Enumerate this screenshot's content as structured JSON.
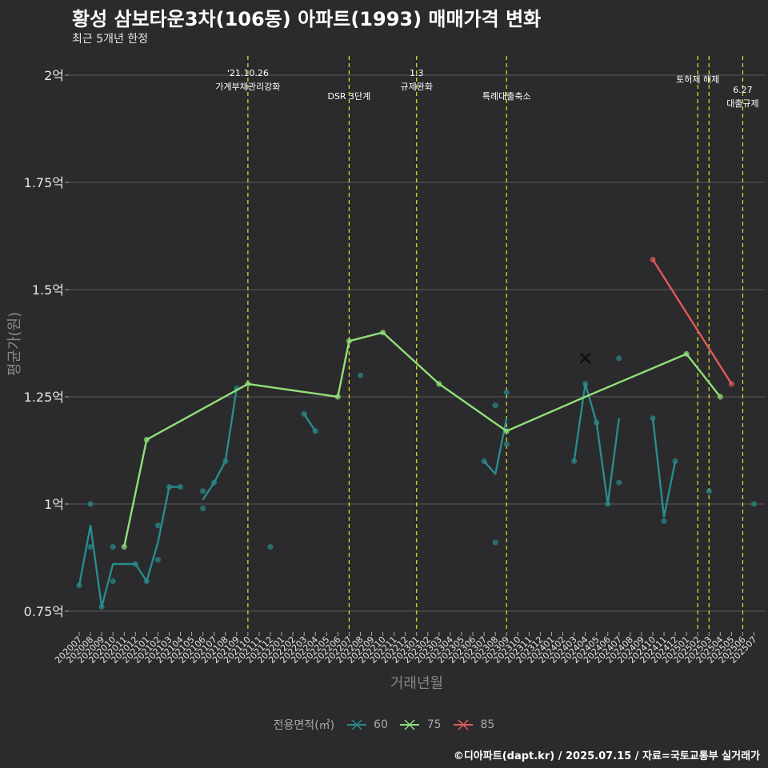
{
  "title": "황성 삼보타운3차(106동) 아파트(1993) 매매가격 변화",
  "subtitle": "최근 5개년 한정",
  "caption": "©디아파트(dapt.kr) / 2025.07.15 / 자료=국토교통부 실거래가",
  "chart_data": {
    "type": "line",
    "xlabel": "거래년월",
    "ylabel": "평균가(원)",
    "ylim": [
      0.7,
      2.05
    ],
    "yticks": [
      0.75,
      1.0,
      1.25,
      1.5,
      1.75,
      2.0
    ],
    "ytick_labels": [
      "0.75억",
      "1억",
      "1.25억",
      "1.5억",
      "1.75억",
      "2억"
    ],
    "categories": [
      "202007",
      "202008",
      "202009",
      "202010",
      "202011",
      "202012",
      "202101",
      "202102",
      "202103",
      "202104",
      "202105",
      "202106",
      "202107",
      "202108",
      "202109",
      "202110",
      "202111",
      "202112",
      "202201",
      "202202",
      "202203",
      "202204",
      "202205",
      "202206",
      "202207",
      "202208",
      "202209",
      "202210",
      "202211",
      "202212",
      "202301",
      "202302",
      "202303",
      "202304",
      "202305",
      "202306",
      "202307",
      "202308",
      "202309",
      "202310",
      "202311",
      "202312",
      "202401",
      "202402",
      "202403",
      "202404",
      "202405",
      "202406",
      "202407",
      "202408",
      "202409",
      "202410",
      "202411",
      "202412",
      "202501",
      "202502",
      "202503",
      "202504",
      "202505",
      "202506",
      "202507"
    ],
    "legend_title": "전용면적(㎡)",
    "grid": true,
    "legend_position": "bottom",
    "series": [
      {
        "name": "60",
        "color": "#2a8c8c",
        "line": [
          [
            [
              "202007",
              0.81
            ],
            [
              "202008",
              0.95
            ],
            [
              "202009",
              0.76
            ],
            [
              "202010",
              0.86
            ],
            [
              "202011",
              0.86
            ],
            [
              "202012",
              0.86
            ],
            [
              "202101",
              0.82
            ],
            [
              "202102",
              0.91
            ],
            [
              "202103",
              1.04
            ],
            [
              "202104",
              1.04
            ]
          ],
          [
            [
              "202106",
              1.01
            ],
            [
              "202107",
              1.05
            ],
            [
              "202108",
              1.1
            ],
            [
              "202109",
              1.27
            ]
          ],
          [
            [
              "202203",
              1.21
            ],
            [
              "202204",
              1.17
            ]
          ],
          [
            [
              "202307",
              1.1
            ],
            [
              "202308",
              1.07
            ],
            [
              "202309",
              1.2
            ]
          ],
          [
            [
              "202403",
              1.1
            ],
            [
              "202404",
              1.28
            ],
            [
              "202405",
              1.19
            ],
            [
              "202406",
              1.0
            ],
            [
              "202407",
              1.2
            ]
          ],
          [
            [
              "202410",
              1.2
            ],
            [
              "202411",
              0.97
            ],
            [
              "202412",
              1.1
            ]
          ]
        ],
        "points": [
          [
            "202007",
            0.81
          ],
          [
            "202008",
            1.0
          ],
          [
            "202008",
            0.9
          ],
          [
            "202009",
            0.76
          ],
          [
            "202010",
            0.9
          ],
          [
            "202010",
            0.82
          ],
          [
            "202012",
            0.86
          ],
          [
            "202101",
            0.82
          ],
          [
            "202102",
            0.95
          ],
          [
            "202102",
            0.87
          ],
          [
            "202103",
            1.04
          ],
          [
            "202104",
            1.04
          ],
          [
            "202106",
            1.03
          ],
          [
            "202106",
            0.99
          ],
          [
            "202107",
            1.05
          ],
          [
            "202108",
            1.1
          ],
          [
            "202109",
            1.27
          ],
          [
            "202112",
            0.9
          ],
          [
            "202203",
            1.21
          ],
          [
            "202204",
            1.17
          ],
          [
            "202208",
            1.3
          ],
          [
            "202307",
            1.1
          ],
          [
            "202308",
            1.23
          ],
          [
            "202308",
            0.91
          ],
          [
            "202309",
            1.26
          ],
          [
            "202309",
            1.14
          ],
          [
            "202403",
            1.1
          ],
          [
            "202404",
            1.28
          ],
          [
            "202405",
            1.19
          ],
          [
            "202406",
            1.0
          ],
          [
            "202407",
            1.34
          ],
          [
            "202407",
            1.05
          ],
          [
            "202410",
            1.2
          ],
          [
            "202411",
            0.96
          ],
          [
            "202412",
            1.1
          ],
          [
            "202503",
            1.03
          ],
          [
            "202507",
            1.0
          ]
        ]
      },
      {
        "name": "75",
        "color": "#8fe07a",
        "line": [
          [
            [
              "202011",
              0.9
            ],
            [
              "202101",
              1.15
            ],
            [
              "202110",
              1.28
            ],
            [
              "202206",
              1.25
            ],
            [
              "202207",
              1.38
            ],
            [
              "202210",
              1.4
            ],
            [
              "202303",
              1.28
            ],
            [
              "202309",
              1.17
            ],
            [
              "202404",
              1.25
            ],
            [
              "202501",
              1.35
            ],
            [
              "202504",
              1.25
            ]
          ]
        ],
        "points": [
          [
            "202011",
            0.9
          ],
          [
            "202101",
            1.15
          ],
          [
            "202110",
            1.28
          ],
          [
            "202206",
            1.25
          ],
          [
            "202207",
            1.38
          ],
          [
            "202210",
            1.4
          ],
          [
            "202303",
            1.28
          ],
          [
            "202309",
            1.17
          ],
          [
            "202501",
            1.35
          ],
          [
            "202504",
            1.25
          ]
        ]
      },
      {
        "name": "85",
        "color": "#e05a5a",
        "line": [
          [
            [
              "202410",
              1.57
            ],
            [
              "202505",
              1.28
            ]
          ]
        ],
        "points": [
          [
            "202410",
            1.57
          ],
          [
            "202505",
            1.28
          ]
        ]
      }
    ],
    "marker_x": {
      "month": "202404",
      "value": 1.34
    },
    "events": [
      {
        "month": "202110",
        "labels": [
          "'21.10.26",
          "가계부채관리강화"
        ],
        "row": 0
      },
      {
        "month": "202207",
        "labels": [
          "DSR 3단계"
        ],
        "row": 1
      },
      {
        "month": "202301",
        "labels": [
          "1.3",
          "규제완화"
        ],
        "row": 0
      },
      {
        "month": "202309",
        "labels": [
          "특례대출축소"
        ],
        "row": 1
      },
      {
        "month": "202502",
        "labels": [
          "토허제 해제"
        ],
        "row": 0
      },
      {
        "month": "202503",
        "labels": [],
        "row": 0
      },
      {
        "month": "202506",
        "labels": [
          "6.27",
          "대출규제"
        ],
        "row": 2
      }
    ]
  }
}
